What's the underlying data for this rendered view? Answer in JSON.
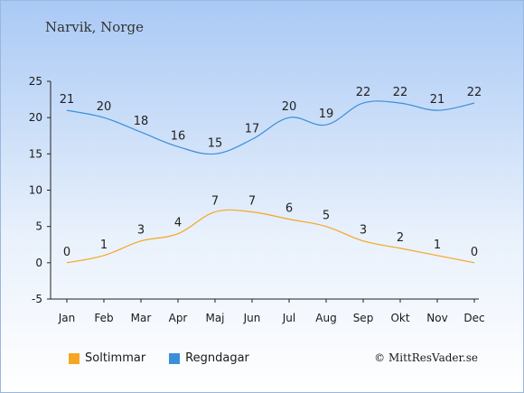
{
  "header": {
    "location": "Narvik, Norge"
  },
  "footer": {
    "copyright": "© MittResVader.se"
  },
  "colors": {
    "soltimmar": "#f5a623",
    "regndagar": "#3b8fd9",
    "axis": "#222222"
  },
  "chart_data": {
    "type": "line",
    "categories": [
      "Jan",
      "Feb",
      "Mar",
      "Apr",
      "Maj",
      "Jun",
      "Jul",
      "Aug",
      "Sep",
      "Okt",
      "Nov",
      "Dec"
    ],
    "ylim": [
      -5,
      25
    ],
    "yticks": [
      -5,
      0,
      5,
      10,
      15,
      20,
      25
    ],
    "grid": false,
    "legend_position": "bottom-left",
    "series": [
      {
        "name": "Soltimmar",
        "color": "#f5a623",
        "values": [
          0,
          1,
          3,
          4,
          7,
          7,
          6,
          5,
          3,
          2,
          1,
          0
        ]
      },
      {
        "name": "Regndagar",
        "color": "#3b8fd9",
        "values": [
          21,
          20,
          18,
          16,
          15,
          17,
          20,
          19,
          22,
          22,
          21,
          22
        ]
      }
    ]
  }
}
